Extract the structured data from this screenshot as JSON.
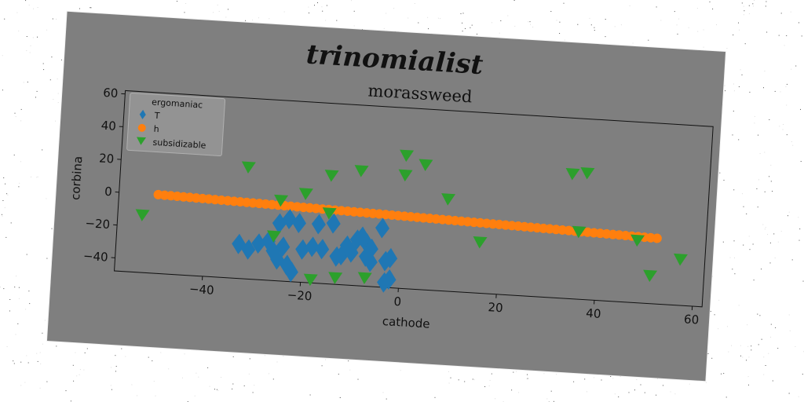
{
  "figure": {
    "suptitle": "trinomialist"
  },
  "colors": {
    "background_card": "#7f7f7f",
    "series_T": "#1f77b4",
    "series_h": "#ff7f0e",
    "series_subsidizable": "#2ca02c"
  },
  "legend": {
    "title": "ergomaniac",
    "entries": [
      {
        "label": "T",
        "marker": "diamond",
        "color": "#1f77b4"
      },
      {
        "label": "h",
        "marker": "circle",
        "color": "#ff7f0e"
      },
      {
        "label": "subsidizable",
        "marker": "triangle-down",
        "color": "#2ca02c"
      }
    ],
    "placement": "upper-left"
  },
  "chart_data": {
    "type": "scatter",
    "title": "morassweed",
    "xlabel": "cathode",
    "ylabel": "corbina",
    "xlim": [
      -58,
      62
    ],
    "ylim": [
      -48,
      62
    ],
    "xticks": [
      -40,
      -20,
      0,
      20,
      40,
      60
    ],
    "yticks": [
      -40,
      -20,
      0,
      20,
      40,
      60
    ],
    "grid": false,
    "series": [
      {
        "name": "T",
        "marker": "diamond",
        "color": "#1f77b4",
        "points": [
          [
            -33,
            -27
          ],
          [
            -31,
            -30
          ],
          [
            -29,
            -26
          ],
          [
            -27,
            -24
          ],
          [
            -26,
            -30
          ],
          [
            -25,
            -35
          ],
          [
            -24,
            -27
          ],
          [
            -25,
            -13
          ],
          [
            -23,
            -10
          ],
          [
            -21,
            -12
          ],
          [
            -23,
            -38
          ],
          [
            -22,
            -42
          ],
          [
            -20,
            -28
          ],
          [
            -18,
            -26
          ],
          [
            -16,
            -27
          ],
          [
            -17,
            -12
          ],
          [
            -14,
            -11
          ],
          [
            -13,
            -31
          ],
          [
            -12,
            -30
          ],
          [
            -11,
            -24
          ],
          [
            -10,
            -28
          ],
          [
            -9,
            -20
          ],
          [
            -8,
            -18
          ],
          [
            -7,
            -22
          ],
          [
            -6,
            -25
          ],
          [
            -7,
            -30
          ],
          [
            -6,
            -33
          ],
          [
            -4,
            -12
          ],
          [
            -3,
            -32
          ],
          [
            -2,
            -30
          ],
          [
            -3,
            -45
          ],
          [
            -2,
            -43
          ]
        ]
      },
      {
        "name": "h",
        "marker": "circle",
        "color": "#ff7f0e",
        "line_from": [
          -50,
          0
        ],
        "line_to": [
          52,
          -8
        ],
        "count": 80
      },
      {
        "name": "subsidizable",
        "marker": "triangle-down",
        "color": "#2ca02c",
        "points": [
          [
            -53,
            -13
          ],
          [
            -32,
            20
          ],
          [
            -26,
            -21
          ],
          [
            -25,
            1
          ],
          [
            -20,
            6
          ],
          [
            -18,
            -46
          ],
          [
            -15,
            -5
          ],
          [
            -15,
            18
          ],
          [
            -13,
            -44
          ],
          [
            -9,
            22
          ],
          [
            -7,
            -43
          ],
          [
            0,
            33
          ],
          [
            0,
            21
          ],
          [
            4,
            28
          ],
          [
            9,
            8
          ],
          [
            16,
            -17
          ],
          [
            34,
            28
          ],
          [
            37,
            29
          ],
          [
            36,
            -7
          ],
          [
            48,
            -10
          ],
          [
            51,
            -31
          ],
          [
            57,
            -20
          ]
        ]
      }
    ]
  }
}
